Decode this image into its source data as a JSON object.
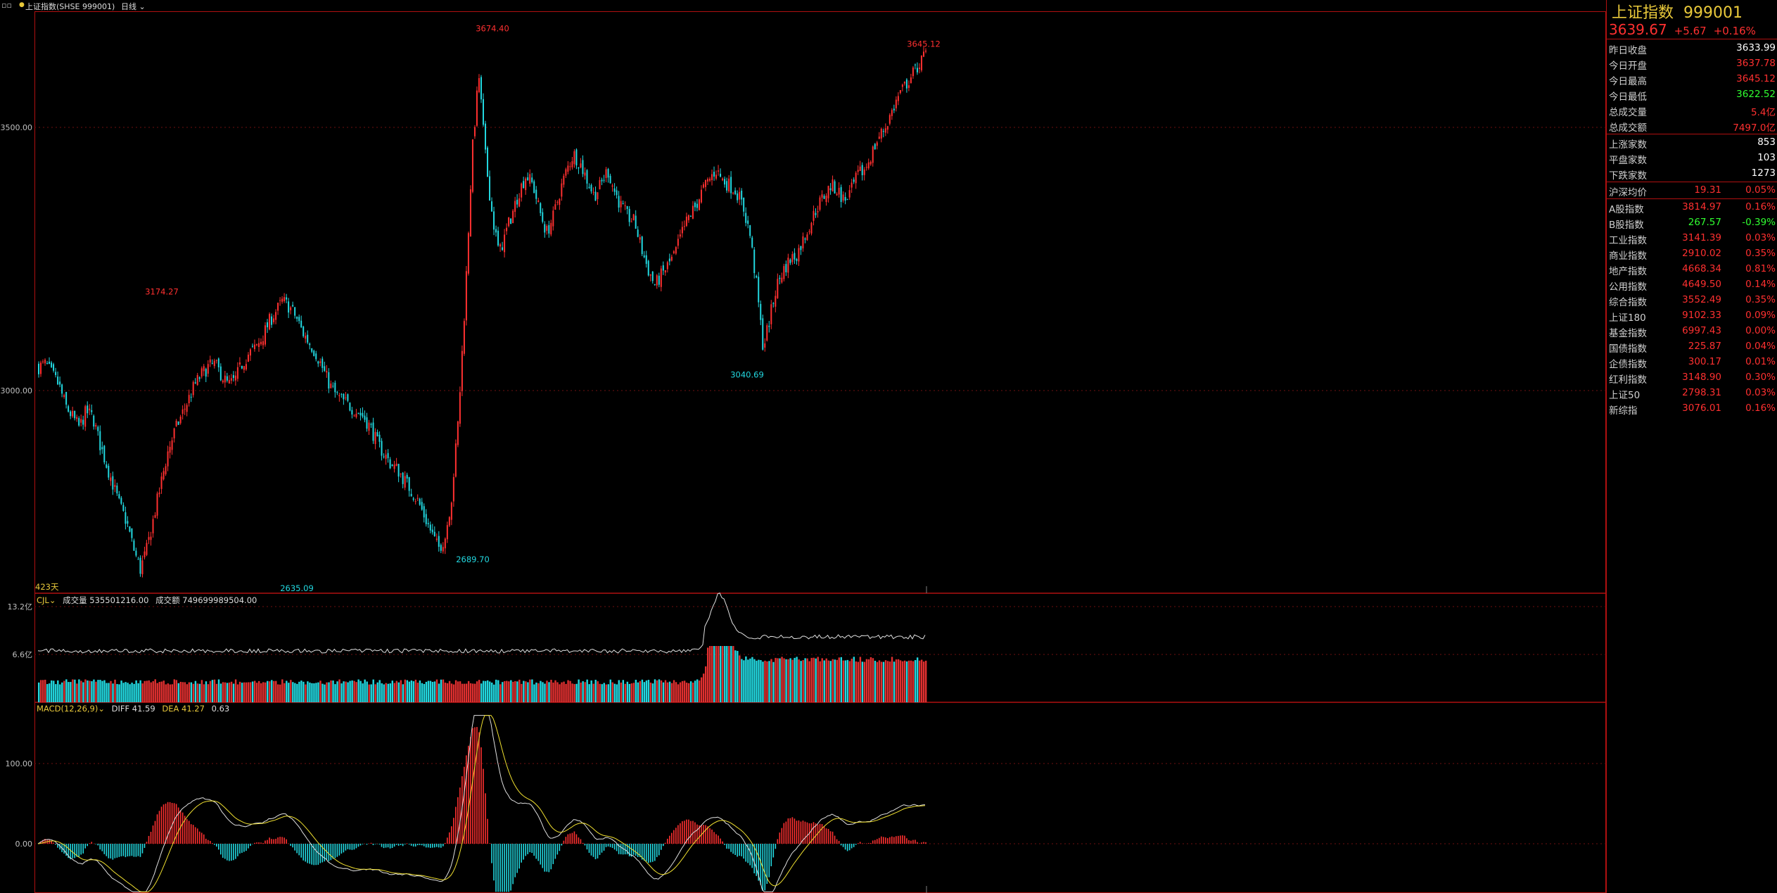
{
  "toolbar": {
    "window_controls": "▫▫",
    "instrument": "上证指数(SHSE 999001)",
    "period": "日线"
  },
  "quote": {
    "name": "上证指数",
    "code": "999001",
    "last": "3639.67",
    "change": "+5.67",
    "change_pct": "+0.16%",
    "fields": [
      {
        "label": "昨日收盘",
        "value": "3633.99",
        "color": "#ffffff"
      },
      {
        "label": "今日开盘",
        "value": "3637.78",
        "color": "#ff3030"
      },
      {
        "label": "今日最高",
        "value": "3645.12",
        "color": "#ff3030"
      },
      {
        "label": "今日最低",
        "value": "3622.52",
        "color": "#30ff30"
      },
      {
        "label": "总成交量",
        "value": "5.4亿",
        "color": "#ff3030"
      },
      {
        "label": "总成交额",
        "value": "7497.0亿",
        "color": "#ff3030"
      }
    ],
    "breadth": [
      {
        "label": "上涨家数",
        "value": "853"
      },
      {
        "label": "平盘家数",
        "value": "103"
      },
      {
        "label": "下跌家数",
        "value": "1273"
      }
    ],
    "avg_price": {
      "label": "沪深均价",
      "value": "19.31",
      "pct": "0.05%"
    },
    "indices": [
      {
        "label": "A股指数",
        "value": "3814.97",
        "pct": "0.16%",
        "color": "#ff3030"
      },
      {
        "label": "B股指数",
        "value": "267.57",
        "pct": "-0.39%",
        "color": "#30ff30"
      },
      {
        "label": "工业指数",
        "value": "3141.39",
        "pct": "0.03%",
        "color": "#ff3030"
      },
      {
        "label": "商业指数",
        "value": "2910.02",
        "pct": "0.35%",
        "color": "#ff3030"
      },
      {
        "label": "地产指数",
        "value": "4668.34",
        "pct": "0.81%",
        "color": "#ff3030"
      },
      {
        "label": "公用指数",
        "value": "4649.50",
        "pct": "0.14%",
        "color": "#ff3030"
      },
      {
        "label": "综合指数",
        "value": "3552.49",
        "pct": "0.35%",
        "color": "#ff3030"
      },
      {
        "label": "上证180",
        "value": "9102.33",
        "pct": "0.09%",
        "color": "#ff3030"
      },
      {
        "label": "基金指数",
        "value": "6997.43",
        "pct": "0.00%",
        "color": "#ff3030"
      },
      {
        "label": "国债指数",
        "value": "225.87",
        "pct": "0.04%",
        "color": "#ff3030"
      },
      {
        "label": "企债指数",
        "value": "300.17",
        "pct": "0.01%",
        "color": "#ff3030"
      },
      {
        "label": "红利指数",
        "value": "3148.90",
        "pct": "0.30%",
        "color": "#ff3030"
      },
      {
        "label": "上证50",
        "value": "2798.31",
        "pct": "0.03%",
        "color": "#ff3030"
      },
      {
        "label": "新综指",
        "value": "3076.01",
        "pct": "0.16%",
        "color": "#ff3030"
      }
    ]
  },
  "panes": {
    "days_label": "423天",
    "volume_header": {
      "name": "CJL",
      "label1": "成交量",
      "value1": "535501216.00",
      "label2": "成交额",
      "value2": "749699989504.00"
    },
    "volume_ticks": [
      "13.2亿",
      "6.6亿"
    ],
    "macd_header": {
      "name": "MACD(12,26,9)",
      "diff": "DIFF 41.59",
      "dea": "DEA 41.27",
      "macd": "0.63"
    },
    "macd_ticks": [
      "100.00",
      "0.00"
    ]
  },
  "colors": {
    "up": "#ff3030",
    "down": "#22d8e0",
    "frame": "#b01010",
    "ma": "#f0e030",
    "line": "#e0e0e0"
  },
  "chart_data": {
    "type": "candlestick",
    "price_axis_ticks": [
      3500,
      3000
    ],
    "annotations": [
      {
        "label": "3174.27",
        "value": 3174.27,
        "kind": "high"
      },
      {
        "label": "2635.09",
        "value": 2635.09,
        "kind": "low"
      },
      {
        "label": "3674.40",
        "value": 3674.4,
        "kind": "high"
      },
      {
        "label": "2689.70",
        "value": 2689.7,
        "kind": "low"
      },
      {
        "label": "3040.69",
        "value": 3040.69,
        "kind": "low"
      },
      {
        "label": "3645.12",
        "value": 3645.12,
        "kind": "high"
      }
    ],
    "closes": [
      3045,
      3050,
      3030,
      3010,
      2970,
      2950,
      2930,
      2960,
      2950,
      2900,
      2860,
      2820,
      2780,
      2750,
      2700,
      2660,
      2700,
      2760,
      2820,
      2880,
      2920,
      2950,
      2980,
      3010,
      3030,
      3045,
      3050,
      3030,
      3010,
      3020,
      3050,
      3070,
      3080,
      3100,
      3130,
      3150,
      3170,
      3160,
      3140,
      3110,
      3090,
      3070,
      3040,
      3010,
      2990,
      2980,
      2970,
      2960,
      2950,
      2930,
      2900,
      2880,
      2860,
      2850,
      2830,
      2810,
      2790,
      2760,
      2730,
      2700,
      2720,
      2800,
      2950,
      3180,
      3450,
      3600,
      3440,
      3330,
      3260,
      3300,
      3340,
      3380,
      3410,
      3390,
      3340,
      3300,
      3330,
      3380,
      3420,
      3450,
      3430,
      3400,
      3370,
      3390,
      3420,
      3380,
      3350,
      3330,
      3320,
      3270,
      3230,
      3200,
      3220,
      3240,
      3260,
      3300,
      3330,
      3350,
      3380,
      3400,
      3420,
      3400,
      3390,
      3380,
      3350,
      3300,
      3200,
      3080,
      3140,
      3200,
      3230,
      3250,
      3260,
      3290,
      3320,
      3350,
      3370,
      3390,
      3380,
      3360,
      3380,
      3410,
      3420,
      3450,
      3480,
      3500,
      3530,
      3560,
      3580,
      3600,
      3620,
      3640
    ],
    "macd_ticks": [
      100,
      0
    ]
  }
}
